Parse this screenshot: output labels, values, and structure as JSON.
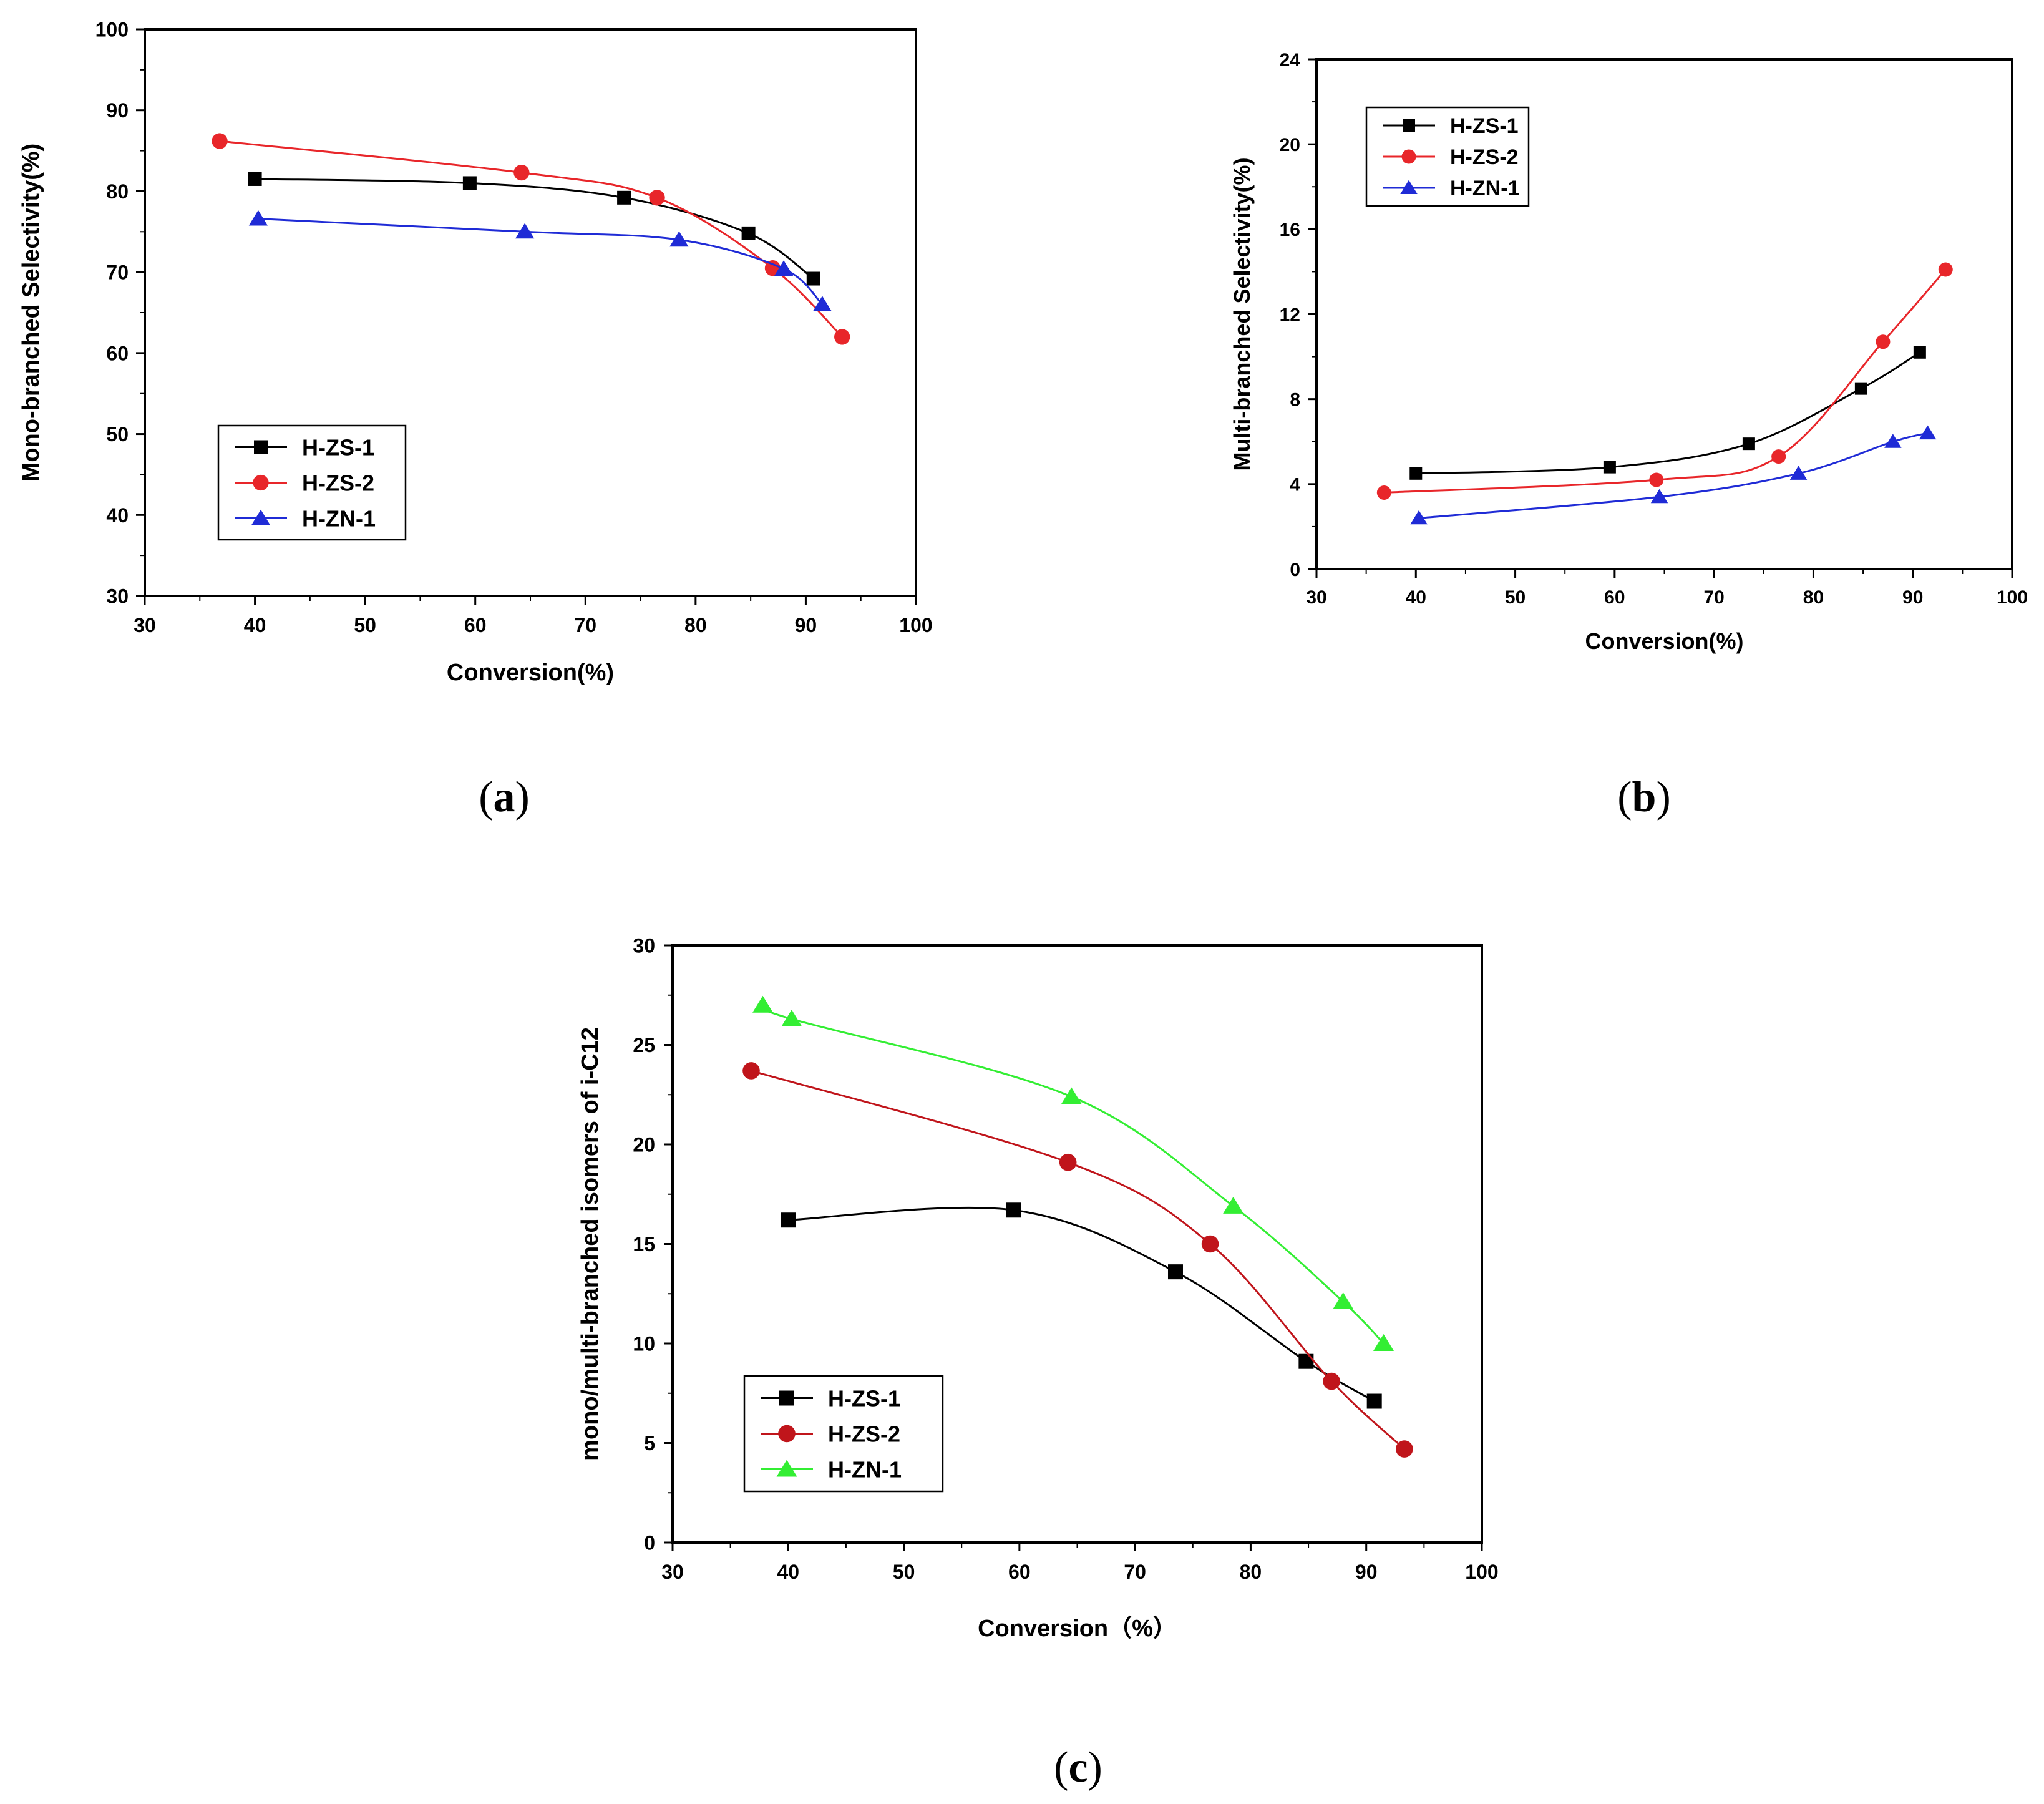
{
  "colors": {
    "H-ZS-1": "#000000",
    "H-ZS-2": "#e8262a",
    "H-ZN-1_b": "#1f2bd6",
    "H-ZN-1_c": "#33ee33",
    "line_red_c": "#c0151b"
  },
  "chart_data": [
    {
      "type": "line",
      "panel_label": "a",
      "title": "",
      "xlabel": "Conversion(%)",
      "ylabel": "Mono-branched Selectivity(%)",
      "xlim": [
        30,
        100
      ],
      "ylim": [
        30,
        100
      ],
      "xticks": [
        30,
        40,
        50,
        60,
        70,
        80,
        90,
        100
      ],
      "yticks": [
        30,
        40,
        50,
        60,
        70,
        80,
        90,
        100
      ],
      "legend_position": "lower-left",
      "series": [
        {
          "name": "H-ZS-1",
          "marker": "square",
          "x": [
            40.0,
            59.5,
            73.5,
            84.8,
            90.7
          ],
          "y": [
            81.5,
            81.0,
            79.2,
            74.8,
            69.2
          ]
        },
        {
          "name": "H-ZS-2",
          "marker": "circle",
          "x": [
            36.8,
            64.2,
            76.5,
            87.0,
            93.3
          ],
          "y": [
            86.2,
            82.3,
            79.2,
            70.5,
            62.0
          ]
        },
        {
          "name": "H-ZN-1",
          "marker": "triangle",
          "x": [
            40.3,
            64.5,
            78.5,
            88.0,
            91.5
          ],
          "y": [
            76.6,
            75.0,
            74.0,
            70.4,
            66.0
          ]
        }
      ]
    },
    {
      "type": "line",
      "panel_label": "b",
      "title": "",
      "xlabel": "Conversion(%)",
      "ylabel": "Multi-branched Selectivity(%)",
      "xlim": [
        30,
        100
      ],
      "ylim": [
        0,
        24
      ],
      "xticks": [
        30,
        40,
        50,
        60,
        70,
        80,
        90,
        100
      ],
      "yticks": [
        0,
        4,
        8,
        12,
        16,
        20,
        24
      ],
      "legend_position": "top-left",
      "series": [
        {
          "name": "H-ZS-1",
          "marker": "square",
          "x": [
            40.0,
            59.5,
            73.5,
            84.8,
            90.7
          ],
          "y": [
            4.5,
            4.8,
            5.9,
            8.5,
            10.2
          ]
        },
        {
          "name": "H-ZS-2",
          "marker": "circle",
          "x": [
            36.8,
            64.2,
            76.5,
            87.0,
            93.3
          ],
          "y": [
            3.6,
            4.2,
            5.3,
            10.7,
            14.1
          ]
        },
        {
          "name": "H-ZN-1",
          "marker": "triangle",
          "x": [
            40.3,
            64.5,
            78.5,
            88.0,
            91.5
          ],
          "y": [
            2.4,
            3.4,
            4.5,
            6.0,
            6.4
          ]
        }
      ]
    },
    {
      "type": "line",
      "panel_label": "c",
      "title": "",
      "xlabel": "Conversion（%）",
      "ylabel": "mono/multi-branched isomers of i-C12",
      "xlim": [
        30,
        100
      ],
      "ylim": [
        0,
        30
      ],
      "xticks": [
        30,
        40,
        50,
        60,
        70,
        80,
        90,
        100
      ],
      "yticks": [
        0,
        5,
        10,
        15,
        20,
        25,
        30
      ],
      "legend_position": "lower-left",
      "series": [
        {
          "name": "H-ZS-1",
          "marker": "square",
          "x": [
            40.0,
            59.5,
            73.5,
            84.8,
            90.7
          ],
          "y": [
            16.2,
            16.7,
            13.6,
            9.1,
            7.1
          ]
        },
        {
          "name": "H-ZS-2",
          "marker": "circle",
          "x": [
            36.8,
            64.2,
            76.5,
            87.0,
            93.3
          ],
          "y": [
            23.7,
            19.1,
            15.0,
            8.1,
            4.7
          ]
        },
        {
          "name": "H-ZN-1",
          "marker": "triangle",
          "x": [
            37.8,
            40.3,
            64.5,
            78.5,
            88.0,
            91.5
          ],
          "y": [
            27.0,
            26.3,
            22.4,
            16.9,
            12.1,
            10.0
          ]
        }
      ]
    }
  ]
}
